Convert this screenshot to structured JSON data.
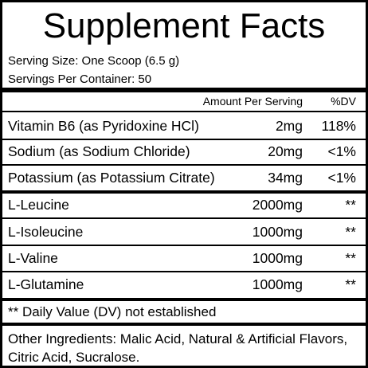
{
  "title": "Supplement Facts",
  "serving_size": "Serving Size: One Scoop (6.5 g)",
  "servings_per_container": "Servings Per Container: 50",
  "table": {
    "header": [
      "Amount Per Serving",
      "%DV"
    ],
    "rows": [
      [
        "Vitamin B6 (as Pyridoxine HCl)",
        "2mg",
        "118%"
      ],
      [
        "Sodium (as Sodium Chloride)",
        "20mg",
        "<1%"
      ],
      [
        "Potassium (as Potassium Citrate)",
        "34mg",
        "<1%"
      ],
      [
        "L-Leucine",
        "2000mg",
        "**"
      ],
      [
        "L-Isoleucine",
        "1000mg",
        "**"
      ],
      [
        "L-Valine",
        "1000mg",
        "**"
      ],
      [
        "L-Glutamine",
        "1000mg",
        "**"
      ]
    ]
  },
  "footnote": "** Daily Value (DV) not established",
  "other_ingredients": "Other Ingredients: Malic Acid, Natural & Artificial Flavors, Citric Acid, Sucralose."
}
